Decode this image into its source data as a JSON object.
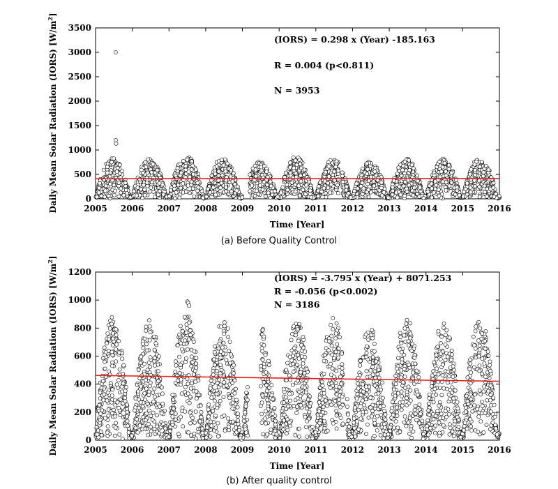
{
  "chart_data": [
    {
      "type": "scatter",
      "caption": "(a) Before Quality Control",
      "xlabel": "Time [Year]",
      "ylabel_main": "Daily Mean Solar Radiation (IORS) [W/m",
      "ylabel_sup": "2",
      "ylabel_close": "]",
      "xlim": [
        2005,
        2016
      ],
      "ylim": [
        0,
        3500
      ],
      "xticks": [
        "2005",
        "2006",
        "2007",
        "2008",
        "2009",
        "2010",
        "2011",
        "2012",
        "2013",
        "2014",
        "2015",
        "2016"
      ],
      "yticks": [
        "0",
        "500",
        "1000",
        "1500",
        "2000",
        "2500",
        "3000",
        "3500"
      ],
      "annotations": [
        "(IORS) = 0.298 x (Year) -185.163",
        "R = 0.004 (p<0.811)",
        "N = 3953"
      ],
      "regression": {
        "slope": 0.298,
        "intercept": -185.163,
        "color": "#e02020"
      },
      "outliers": [
        [
          2005.55,
          3000
        ],
        [
          2005.55,
          1200
        ],
        [
          2005.56,
          1130
        ]
      ],
      "peak_amplitude": [
        780,
        770,
        840,
        790,
        700,
        800,
        760,
        720,
        770,
        760,
        780
      ],
      "n_points": 3953,
      "gaps": [
        [
          2009.0,
          2009.2
        ],
        [
          2011.62,
          2011.72
        ]
      ],
      "seed": 7
    },
    {
      "type": "scatter",
      "caption": "(b) After quality control",
      "xlabel": "Time [Year]",
      "ylabel_main": "Daily Mean Solar Radiation (IORS) [W/m",
      "ylabel_sup": "2",
      "ylabel_close": "]",
      "xlim": [
        2005,
        2016
      ],
      "ylim": [
        0,
        1200
      ],
      "xticks": [
        "2005",
        "2006",
        "2007",
        "2008",
        "2009",
        "2010",
        "2011",
        "2012",
        "2013",
        "2014",
        "2015",
        "2016"
      ],
      "yticks": [
        "0",
        "200",
        "400",
        "600",
        "800",
        "1000",
        "1200"
      ],
      "annotations": [
        "(IORS) = -3.795 x (Year) + 8071.253",
        "R = -0.056 (p<0.002)",
        "N = 3186"
      ],
      "regression": {
        "slope": -3.795,
        "intercept": 8071.253,
        "color": "#e02020"
      },
      "outliers": [
        [
          2007.5,
          990
        ],
        [
          2007.52,
          980
        ],
        [
          2007.55,
          960
        ]
      ],
      "peak_amplitude": [
        820,
        790,
        860,
        800,
        760,
        810,
        820,
        800,
        820,
        800,
        830
      ],
      "n_points": 3186,
      "gaps": [
        [
          2009.15,
          2009.5
        ],
        [
          2011.75,
          2011.85
        ]
      ],
      "seed": 19
    }
  ]
}
